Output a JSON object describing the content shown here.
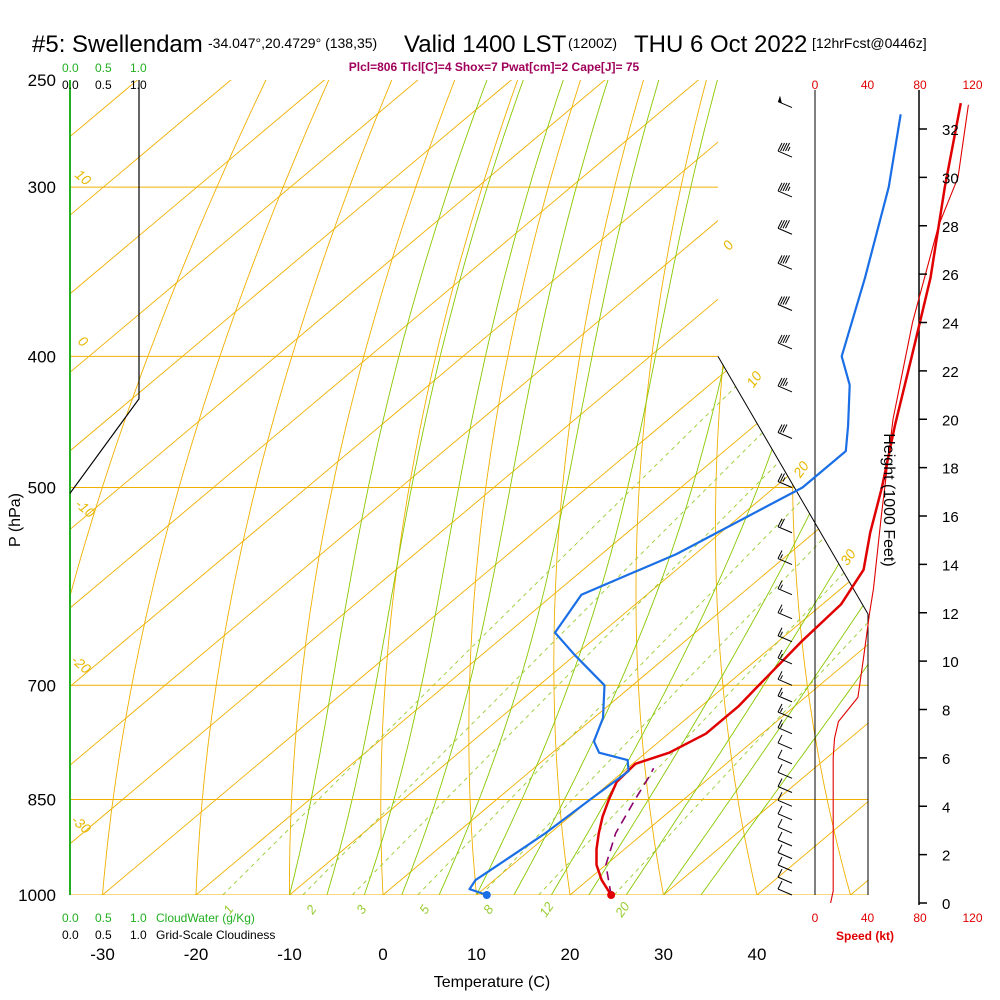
{
  "header": {
    "station": "#5: Swellendam",
    "coords": "-34.047°,20.4729° (138,35)",
    "valid_prefix": "Valid 1400 LST",
    "valid_utc": "(1200Z)",
    "valid_date": "THU 6 Oct 2022",
    "forecast": "[12hrFcst@0446z]"
  },
  "stats_line": "Plcl=806 Tlcl[C]=4 Shox=7 Pwat[cm]=2 Cape[J]= 75",
  "cloud_scale": {
    "cloudwater_label": "CloudWater (g/Kg)",
    "cloudiness_label": "Grid-Scale Cloudiness",
    "ticks": [
      "0.0",
      "0.5",
      "1.0"
    ]
  },
  "colors": {
    "temperature": "#e00000",
    "dewpoint": "#1a6ee6",
    "parcel": "#8b006b",
    "isotherm": "#f0b000",
    "dry_adiabat": "#f0b000",
    "moist_adiabat": "#88c800",
    "mixing_ratio": "#99cc33",
    "isobar": "#f0b000",
    "cloudwater": "#22b022",
    "cloudiness": "#000000",
    "wind_speed": "#e00000"
  },
  "chart_data": {
    "type": "line",
    "title": "#5: Swellendam -34.047°,20.4729° (138,35)  Valid 1400 LST (1200Z) THU 6 Oct 2022 [12hrFcst@0446z]",
    "xlabel": "Temperature (C)",
    "ylabel": "P (hPa)",
    "ylabel_right": "Height (1000 Feet)",
    "speed_label": "Speed (kt)",
    "x_ticks": [
      -30,
      -20,
      -10,
      0,
      10,
      20,
      30,
      40
    ],
    "xlim": [
      -34,
      46
    ],
    "pressure_ticks": [
      250,
      300,
      400,
      500,
      700,
      850,
      1000
    ],
    "ylim": [
      1000,
      250
    ],
    "y_scale": "log-pressure",
    "height_ticks_kft": [
      0,
      2,
      4,
      6,
      8,
      10,
      12,
      14,
      16,
      18,
      20,
      22,
      24,
      26,
      28,
      30,
      32
    ],
    "speed_ticks": [
      0,
      40,
      80,
      120
    ],
    "series": [
      {
        "name": "Temperature",
        "points": [
          {
            "p": 1000,
            "t": 24.4
          },
          {
            "p": 975,
            "t": 21.5
          },
          {
            "p": 950,
            "t": 19.0
          },
          {
            "p": 925,
            "t": 17.0
          },
          {
            "p": 900,
            "t": 15.2
          },
          {
            "p": 875,
            "t": 13.5
          },
          {
            "p": 850,
            "t": 12.0
          },
          {
            "p": 825,
            "t": 10.6
          },
          {
            "p": 800,
            "t": 10.3
          },
          {
            "p": 785,
            "t": 12.5
          },
          {
            "p": 760,
            "t": 14.0
          },
          {
            "p": 725,
            "t": 14.0
          },
          {
            "p": 700,
            "t": 13.5
          },
          {
            "p": 650,
            "t": 12.5
          },
          {
            "p": 610,
            "t": 12.0
          },
          {
            "p": 575,
            "t": 10.0
          },
          {
            "p": 540,
            "t": 6.0
          },
          {
            "p": 500,
            "t": 1.5
          },
          {
            "p": 450,
            "t": -5.0
          },
          {
            "p": 400,
            "t": -12.0
          },
          {
            "p": 350,
            "t": -20.0
          },
          {
            "p": 300,
            "t": -30.0
          },
          {
            "p": 260,
            "t": -39.0
          }
        ]
      },
      {
        "name": "Dewpoint",
        "points": [
          {
            "p": 1000,
            "t": 11.1
          },
          {
            "p": 990,
            "t": 8.5
          },
          {
            "p": 975,
            "t": 8.0
          },
          {
            "p": 950,
            "t": 8.5
          },
          {
            "p": 925,
            "t": 9.0
          },
          {
            "p": 900,
            "t": 9.5
          },
          {
            "p": 850,
            "t": 10.0
          },
          {
            "p": 810,
            "t": 10.5
          },
          {
            "p": 795,
            "t": 9.0
          },
          {
            "p": 785,
            "t": 5.0
          },
          {
            "p": 770,
            "t": 3.0
          },
          {
            "p": 740,
            "t": 1.0
          },
          {
            "p": 700,
            "t": -3.0
          },
          {
            "p": 665,
            "t": -10.0
          },
          {
            "p": 640,
            "t": -15.0
          },
          {
            "p": 600,
            "t": -17.0
          },
          {
            "p": 560,
            "t": -12.0
          },
          {
            "p": 500,
            "t": -7.0
          },
          {
            "p": 470,
            "t": -7.0
          },
          {
            "p": 450,
            "t": -10.0
          },
          {
            "p": 420,
            "t": -15.0
          },
          {
            "p": 400,
            "t": -19.5
          },
          {
            "p": 350,
            "t": -27.0
          },
          {
            "p": 300,
            "t": -36.0
          },
          {
            "p": 265,
            "t": -44.0
          }
        ]
      },
      {
        "name": "Parcel",
        "style": "dashed",
        "points": [
          {
            "p": 1000,
            "t": 24.4
          },
          {
            "p": 950,
            "t": 20.0
          },
          {
            "p": 900,
            "t": 17.0
          },
          {
            "p": 850,
            "t": 14.8
          },
          {
            "p": 820,
            "t": 13.5
          },
          {
            "p": 806,
            "t": 12.8
          }
        ]
      }
    ],
    "surface_points": [
      {
        "name": "Temperature",
        "p": 1000,
        "t": 24.4
      },
      {
        "name": "Dewpoint",
        "p": 1000,
        "t": 11.1
      }
    ],
    "isotherm_labels": [
      "0",
      "10",
      "20",
      "30"
    ],
    "dry_adiabat_labels": [
      "10",
      "0",
      "-10",
      "-20",
      "-30"
    ],
    "mixing_ratio_labels": [
      "1",
      "2",
      "3",
      "5",
      "8",
      "12",
      "20"
    ],
    "cloudiness": [
      {
        "p": 250,
        "v": 1.0
      },
      {
        "p": 430,
        "v": 1.0
      },
      {
        "p": 505,
        "v": 0.0
      }
    ],
    "cloudwater": [
      {
        "p": 250,
        "v": 0.0
      },
      {
        "p": 1000,
        "v": 0.0
      }
    ],
    "wind_speed_kt": [
      {
        "h": 0,
        "s": 12
      },
      {
        "h": 0.5,
        "s": 14
      },
      {
        "h": 2,
        "s": 14
      },
      {
        "h": 4,
        "s": 14
      },
      {
        "h": 6,
        "s": 14
      },
      {
        "h": 6.8,
        "s": 15
      },
      {
        "h": 7.5,
        "s": 18
      },
      {
        "h": 8.5,
        "s": 33
      },
      {
        "h": 10,
        "s": 37
      },
      {
        "h": 12,
        "s": 42
      },
      {
        "h": 13,
        "s": 45
      },
      {
        "h": 16,
        "s": 51
      },
      {
        "h": 20,
        "s": 60
      },
      {
        "h": 24,
        "s": 75
      },
      {
        "h": 28,
        "s": 95
      },
      {
        "h": 30,
        "s": 110
      },
      {
        "h": 33,
        "s": 118
      }
    ],
    "wind_barbs": [
      {
        "p": 262,
        "kt": 50
      },
      {
        "p": 285,
        "kt": 45
      },
      {
        "p": 305,
        "kt": 45
      },
      {
        "p": 325,
        "kt": 40
      },
      {
        "p": 345,
        "kt": 40
      },
      {
        "p": 370,
        "kt": 40
      },
      {
        "p": 395,
        "kt": 40
      },
      {
        "p": 425,
        "kt": 35
      },
      {
        "p": 460,
        "kt": 30
      },
      {
        "p": 500,
        "kt": 25
      },
      {
        "p": 540,
        "kt": 20
      },
      {
        "p": 570,
        "kt": 15
      },
      {
        "p": 600,
        "kt": 15
      },
      {
        "p": 625,
        "kt": 15
      },
      {
        "p": 650,
        "kt": 15
      },
      {
        "p": 675,
        "kt": 15
      },
      {
        "p": 700,
        "kt": 15
      },
      {
        "p": 720,
        "kt": 15
      },
      {
        "p": 740,
        "kt": 15
      },
      {
        "p": 760,
        "kt": 15
      },
      {
        "p": 780,
        "kt": 10
      },
      {
        "p": 800,
        "kt": 10
      },
      {
        "p": 820,
        "kt": 10
      },
      {
        "p": 840,
        "kt": 10
      },
      {
        "p": 860,
        "kt": 10
      },
      {
        "p": 880,
        "kt": 10
      },
      {
        "p": 900,
        "kt": 10
      },
      {
        "p": 920,
        "kt": 10
      },
      {
        "p": 940,
        "kt": 10
      },
      {
        "p": 960,
        "kt": 10
      },
      {
        "p": 980,
        "kt": 10
      },
      {
        "p": 1000,
        "kt": 10
      }
    ]
  }
}
